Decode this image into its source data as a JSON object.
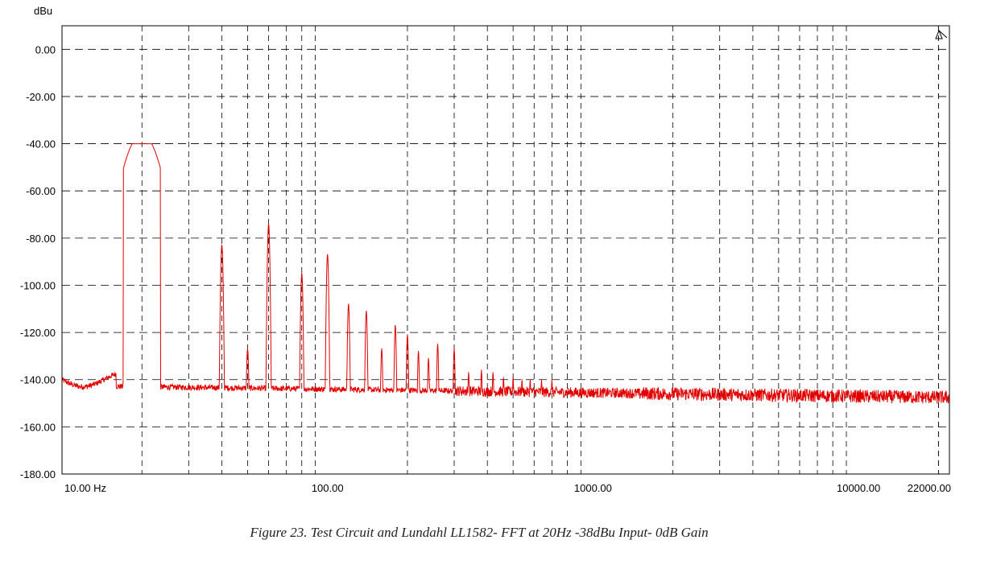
{
  "figure_caption": "Figure 23. Test Circuit and Lundahl LL1582- FFT at 20Hz -38dBu Input- 0dB Gain",
  "chart_data": {
    "type": "line",
    "title": "",
    "ylabel": "dBu",
    "xlabel": "",
    "x_scale": "log",
    "xlim": [
      10,
      22000
    ],
    "ylim": [
      -180,
      10
    ],
    "grid": true,
    "legend": "none",
    "line_color": "#e00000",
    "x_tick_labels": [
      {
        "value": 10,
        "label": "10.00 Hz"
      },
      {
        "value": 100,
        "label": "100.00"
      },
      {
        "value": 1000,
        "label": "1000.00"
      },
      {
        "value": 10000,
        "label": "10000.00"
      },
      {
        "value": 22000,
        "label": "22000.00"
      }
    ],
    "y_tick_labels": [
      {
        "value": 0,
        "label": "0.00"
      },
      {
        "value": -20,
        "label": "-20.00"
      },
      {
        "value": -40,
        "label": "-40.00"
      },
      {
        "value": -60,
        "label": "-60.00"
      },
      {
        "value": -80,
        "label": "-80.00"
      },
      {
        "value": -100,
        "label": "-100.00"
      },
      {
        "value": -120,
        "label": "-120.00"
      },
      {
        "value": -140,
        "label": "-140.00"
      },
      {
        "value": -160,
        "label": "-160.00"
      },
      {
        "value": -180,
        "label": "-180.00"
      }
    ],
    "series": [
      {
        "color": "#e00000",
        "noise_floor_dbu": -144,
        "peaks": [
          {
            "freq": 20,
            "dbu": -40
          },
          {
            "freq": 40,
            "dbu": -83
          },
          {
            "freq": 50,
            "dbu": -127
          },
          {
            "freq": 60,
            "dbu": -74
          },
          {
            "freq": 80,
            "dbu": -95
          },
          {
            "freq": 100,
            "dbu": -87
          },
          {
            "freq": 120,
            "dbu": -108
          },
          {
            "freq": 140,
            "dbu": -111
          },
          {
            "freq": 160,
            "dbu": -127
          },
          {
            "freq": 180,
            "dbu": -117
          },
          {
            "freq": 200,
            "dbu": -121
          },
          {
            "freq": 220,
            "dbu": -128
          },
          {
            "freq": 240,
            "dbu": -131
          },
          {
            "freq": 260,
            "dbu": -125
          },
          {
            "freq": 300,
            "dbu": -127
          },
          {
            "freq": 340,
            "dbu": -137
          },
          {
            "freq": 380,
            "dbu": -136
          },
          {
            "freq": 420,
            "dbu": -137
          },
          {
            "freq": 460,
            "dbu": -139
          },
          {
            "freq": 500,
            "dbu": -139
          },
          {
            "freq": 540,
            "dbu": -140
          },
          {
            "freq": 580,
            "dbu": -140
          },
          {
            "freq": 640,
            "dbu": -140
          },
          {
            "freq": 700,
            "dbu": -140
          }
        ]
      }
    ]
  }
}
